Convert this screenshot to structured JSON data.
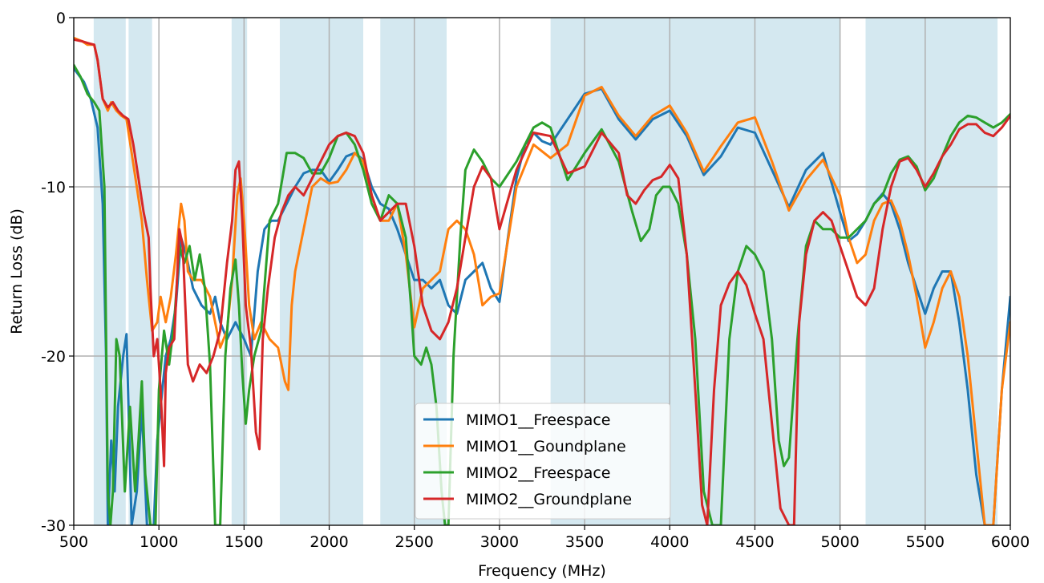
{
  "chart_data": {
    "type": "line",
    "xlabel": "Frequency (MHz)",
    "ylabel": "Return Loss (dB)",
    "xlim": [
      500,
      6000
    ],
    "ylim": [
      -30,
      0
    ],
    "xticks": [
      500,
      1000,
      1500,
      2000,
      2500,
      3000,
      3500,
      4000,
      4500,
      5000,
      5500,
      6000
    ],
    "yticks": [
      -30,
      -20,
      -10,
      0
    ],
    "ytick_labels": [
      "-30",
      "-20",
      "-10",
      "0"
    ],
    "grid": true,
    "legend_position": "lower-center",
    "shaded_bands": [
      [
        617,
        805
      ],
      [
        822,
        960
      ],
      [
        1427,
        1518
      ],
      [
        1710,
        2200
      ],
      [
        2300,
        2690
      ],
      [
        3300,
        5000
      ],
      [
        5150,
        5925
      ]
    ],
    "band_color": "#d4e8f0",
    "series": [
      {
        "name": "MIMO1__Freespace",
        "color": "#1f77b4",
        "x": [
          500,
          560,
          600,
          640,
          670,
          690,
          700,
          720,
          740,
          760,
          790,
          810,
          840,
          870,
          900,
          930,
          950,
          970,
          990,
          1010,
          1040,
          1070,
          1100,
          1130,
          1160,
          1200,
          1250,
          1300,
          1330,
          1360,
          1400,
          1450,
          1500,
          1540,
          1580,
          1620,
          1660,
          1700,
          1750,
          1800,
          1850,
          1900,
          1950,
          2000,
          2050,
          2100,
          2150,
          2200,
          2250,
          2300,
          2350,
          2400,
          2450,
          2500,
          2550,
          2600,
          2650,
          2700,
          2750,
          2800,
          2850,
          2900,
          2950,
          3000,
          3050,
          3100,
          3150,
          3200,
          3250,
          3300,
          3400,
          3500,
          3600,
          3700,
          3800,
          3900,
          4000,
          4100,
          4200,
          4300,
          4400,
          4500,
          4600,
          4700,
          4800,
          4900,
          5000,
          5050,
          5100,
          5150,
          5200,
          5250,
          5300,
          5350,
          5400,
          5450,
          5500,
          5550,
          5600,
          5650,
          5700,
          5750,
          5800,
          5850,
          5900,
          5950,
          6000
        ],
        "values": [
          -3.0,
          -3.8,
          -4.8,
          -6.5,
          -11,
          -20,
          -30,
          -25,
          -28,
          -23,
          -20,
          -18.7,
          -30,
          -28,
          -23,
          -30,
          -30,
          -30,
          -25,
          -23,
          -20,
          -19,
          -17,
          -13,
          -14,
          -16,
          -17,
          -17.5,
          -16.5,
          -18,
          -19,
          -18,
          -19,
          -20,
          -15,
          -12.5,
          -12,
          -12,
          -11,
          -10.0,
          -9.2,
          -9.0,
          -9.0,
          -9.7,
          -9.0,
          -8.2,
          -8.0,
          -8.4,
          -10,
          -11.0,
          -11.3,
          -12.5,
          -14,
          -15.5,
          -15.5,
          -16,
          -15.5,
          -17,
          -17.5,
          -15.5,
          -15.0,
          -14.5,
          -16,
          -16.8,
          -13,
          -9.5,
          -7.5,
          -6.8,
          -7.3,
          -7.5,
          -6.0,
          -4.5,
          -4.2,
          -6.0,
          -7.2,
          -6.0,
          -5.5,
          -7.0,
          -9.3,
          -8.2,
          -6.5,
          -6.8,
          -9.0,
          -11.2,
          -9.0,
          -8.0,
          -11.5,
          -13.2,
          -12.8,
          -12.0,
          -11.0,
          -10.4,
          -11.0,
          -12.5,
          -14.5,
          -16.0,
          -17.5,
          -16.0,
          -15.0,
          -15.0,
          -18.0,
          -22.0,
          -27.0,
          -30.0,
          -30.0,
          -22.0,
          -16.5
        ]
      },
      {
        "name": "MIMO1__Goundplane",
        "color": "#ff7f0e",
        "x": [
          500,
          550,
          580,
          620,
          640,
          670,
          700,
          720,
          750,
          780,
          810,
          840,
          870,
          900,
          930,
          960,
          990,
          1010,
          1040,
          1070,
          1100,
          1130,
          1150,
          1170,
          1200,
          1250,
          1300,
          1330,
          1360,
          1400,
          1430,
          1460,
          1480,
          1500,
          1530,
          1560,
          1600,
          1650,
          1700,
          1740,
          1760,
          1780,
          1800,
          1850,
          1900,
          1950,
          2000,
          2050,
          2100,
          2150,
          2200,
          2250,
          2300,
          2350,
          2400,
          2450,
          2500,
          2550,
          2600,
          2650,
          2700,
          2750,
          2800,
          2850,
          2900,
          2950,
          3000,
          3100,
          3200,
          3300,
          3400,
          3500,
          3600,
          3700,
          3800,
          3900,
          4000,
          4100,
          4200,
          4300,
          4400,
          4500,
          4600,
          4700,
          4800,
          4900,
          5000,
          5050,
          5100,
          5150,
          5200,
          5250,
          5300,
          5350,
          5400,
          5450,
          5500,
          5550,
          5600,
          5650,
          5700,
          5750,
          5800,
          5850,
          5900,
          5950,
          6000
        ],
        "values": [
          -1.2,
          -1.4,
          -1.6,
          -1.6,
          -2.5,
          -4.8,
          -5.5,
          -5.0,
          -5.5,
          -5.8,
          -6.0,
          -8,
          -10,
          -12.0,
          -15.5,
          -18.5,
          -18.0,
          -16.5,
          -18.0,
          -16.5,
          -14.0,
          -11.0,
          -12.0,
          -15,
          -15.5,
          -15.5,
          -16.5,
          -18.0,
          -19.5,
          -18.5,
          -15.5,
          -10.5,
          -9.5,
          -12.0,
          -17.0,
          -19.0,
          -18.0,
          -19.0,
          -19.5,
          -21.5,
          -22.0,
          -17.0,
          -15.0,
          -12.5,
          -10.0,
          -9.5,
          -9.8,
          -9.7,
          -9.0,
          -8.0,
          -8.5,
          -10.5,
          -12.0,
          -12.0,
          -11.0,
          -14.0,
          -18.3,
          -16.0,
          -15.5,
          -15.0,
          -12.5,
          -12.0,
          -12.5,
          -14.0,
          -17.0,
          -16.5,
          -16.3,
          -10.0,
          -7.5,
          -8.3,
          -7.5,
          -4.6,
          -4.1,
          -5.8,
          -7.0,
          -5.8,
          -5.2,
          -6.8,
          -9.1,
          -7.6,
          -6.2,
          -5.9,
          -8.5,
          -11.4,
          -9.6,
          -8.4,
          -10.5,
          -13.0,
          -14.5,
          -14.0,
          -12.0,
          -11.0,
          -10.8,
          -12.0,
          -14.0,
          -16.5,
          -19.5,
          -18.0,
          -16.0,
          -15.0,
          -16.5,
          -20.0,
          -25.0,
          -30.0,
          -30.0,
          -22.0,
          -18.0
        ]
      },
      {
        "name": "MIMO2__Freespace",
        "color": "#2ca02c",
        "x": [
          500,
          540,
          580,
          620,
          650,
          680,
          700,
          715,
          730,
          750,
          770,
          800,
          830,
          860,
          880,
          900,
          920,
          950,
          980,
          1000,
          1030,
          1060,
          1090,
          1120,
          1150,
          1180,
          1210,
          1240,
          1270,
          1300,
          1330,
          1360,
          1390,
          1420,
          1450,
          1470,
          1490,
          1510,
          1530,
          1560,
          1600,
          1650,
          1700,
          1750,
          1800,
          1850,
          1900,
          1950,
          2000,
          2050,
          2100,
          2150,
          2200,
          2250,
          2300,
          2350,
          2400,
          2450,
          2480,
          2500,
          2540,
          2570,
          2600,
          2630,
          2660,
          2680,
          2700,
          2730,
          2770,
          2800,
          2850,
          2900,
          2950,
          3000,
          3100,
          3200,
          3250,
          3300,
          3400,
          3500,
          3600,
          3700,
          3780,
          3830,
          3880,
          3920,
          3960,
          4000,
          4050,
          4100,
          4150,
          4200,
          4250,
          4300,
          4350,
          4400,
          4450,
          4500,
          4550,
          4600,
          4640,
          4670,
          4700,
          4750,
          4800,
          4850,
          4900,
          4950,
          5000,
          5050,
          5100,
          5150,
          5200,
          5250,
          5300,
          5350,
          5400,
          5450,
          5500,
          5550,
          5600,
          5650,
          5700,
          5750,
          5800,
          5850,
          5900,
          5950,
          6000
        ],
        "values": [
          -2.8,
          -3.5,
          -4.5,
          -5.0,
          -5.5,
          -10,
          -28,
          -30,
          -28,
          -19,
          -20,
          -28,
          -23,
          -28,
          -25,
          -21.5,
          -27,
          -30,
          -30,
          -22,
          -18.5,
          -20.5,
          -18.0,
          -13.5,
          -14.5,
          -13.5,
          -15.5,
          -14.0,
          -16.0,
          -20.5,
          -30,
          -30,
          -20.0,
          -16.0,
          -14.3,
          -17.0,
          -21.0,
          -24.0,
          -22.0,
          -20.0,
          -18.5,
          -12.0,
          -11.0,
          -8.0,
          -8.0,
          -8.3,
          -9.2,
          -9.2,
          -8.3,
          -7.0,
          -6.8,
          -7.5,
          -9.0,
          -11.0,
          -12.0,
          -10.5,
          -11.0,
          -13.0,
          -17.0,
          -20.0,
          -20.5,
          -19.5,
          -20.5,
          -23.0,
          -28.0,
          -30.0,
          -30.0,
          -20.0,
          -13.0,
          -9.0,
          -7.8,
          -8.5,
          -9.5,
          -10.0,
          -8.5,
          -6.5,
          -6.2,
          -6.5,
          -9.6,
          -8.0,
          -6.6,
          -8.5,
          -11.5,
          -13.2,
          -12.5,
          -10.5,
          -10.0,
          -10.0,
          -11.0,
          -14.0,
          -19.0,
          -28.0,
          -30.0,
          -30.0,
          -19.0,
          -15.0,
          -13.5,
          -14.0,
          -15.0,
          -19.0,
          -25.0,
          -26.5,
          -26.0,
          -19.0,
          -13.5,
          -12.0,
          -12.5,
          -12.5,
          -13.0,
          -13.0,
          -12.5,
          -12.0,
          -11.0,
          -10.5,
          -9.2,
          -8.4,
          -8.2,
          -8.8,
          -10.2,
          -9.5,
          -8.2,
          -7.0,
          -6.2,
          -5.8,
          -5.9,
          -6.2,
          -6.5,
          -6.2,
          -5.7
        ]
      },
      {
        "name": "MIMO2__Groundplane",
        "color": "#d62728",
        "x": [
          500,
          550,
          580,
          620,
          640,
          670,
          700,
          730,
          760,
          790,
          820,
          850,
          880,
          910,
          940,
          950,
          970,
          990,
          1010,
          1030,
          1040,
          1060,
          1090,
          1120,
          1140,
          1170,
          1200,
          1240,
          1280,
          1320,
          1360,
          1400,
          1430,
          1450,
          1470,
          1490,
          1510,
          1540,
          1570,
          1590,
          1610,
          1640,
          1680,
          1720,
          1760,
          1800,
          1850,
          1900,
          1950,
          2000,
          2050,
          2100,
          2150,
          2200,
          2250,
          2300,
          2350,
          2400,
          2450,
          2500,
          2550,
          2600,
          2650,
          2700,
          2750,
          2800,
          2850,
          2900,
          2950,
          3000,
          3100,
          3200,
          3300,
          3400,
          3500,
          3600,
          3700,
          3750,
          3800,
          3850,
          3900,
          3950,
          4000,
          4050,
          4100,
          4150,
          4190,
          4220,
          4260,
          4300,
          4350,
          4400,
          4450,
          4500,
          4550,
          4600,
          4650,
          4700,
          4730,
          4760,
          4800,
          4850,
          4900,
          4950,
          5000,
          5050,
          5100,
          5150,
          5200,
          5250,
          5300,
          5350,
          5400,
          5450,
          5500,
          5550,
          5600,
          5650,
          5700,
          5750,
          5800,
          5850,
          5900,
          5950,
          6000
        ],
        "values": [
          -1.3,
          -1.4,
          -1.5,
          -1.6,
          -2.5,
          -4.8,
          -5.3,
          -5.0,
          -5.5,
          -5.8,
          -6.0,
          -7.5,
          -9.5,
          -11.5,
          -13.0,
          -16.0,
          -20.0,
          -19.0,
          -22.0,
          -26.5,
          -21.0,
          -19.5,
          -19.0,
          -12.5,
          -13.5,
          -20.5,
          -21.5,
          -20.5,
          -21.0,
          -20.0,
          -18.5,
          -14.5,
          -12.0,
          -9.0,
          -8.5,
          -12.0,
          -17.0,
          -19.5,
          -24.5,
          -25.5,
          -19.0,
          -16.0,
          -13.0,
          -11.5,
          -10.5,
          -10.0,
          -10.5,
          -9.5,
          -8.5,
          -7.5,
          -7.0,
          -6.8,
          -7.0,
          -8.0,
          -10.5,
          -12.0,
          -11.5,
          -11.0,
          -11.0,
          -13.5,
          -17.0,
          -18.5,
          -19.0,
          -18.0,
          -16.0,
          -13.0,
          -10.0,
          -8.8,
          -9.5,
          -12.5,
          -9.0,
          -6.8,
          -7.0,
          -9.2,
          -8.8,
          -6.8,
          -8.0,
          -10.5,
          -11.0,
          -10.2,
          -9.6,
          -9.4,
          -8.7,
          -9.5,
          -14.0,
          -22.0,
          -28.8,
          -30.0,
          -22.0,
          -17.0,
          -15.7,
          -15.0,
          -15.8,
          -17.5,
          -19.0,
          -24.0,
          -29.0,
          -30.0,
          -30.0,
          -18.0,
          -14.0,
          -12.0,
          -11.5,
          -12.0,
          -13.5,
          -15.0,
          -16.5,
          -17.0,
          -16.0,
          -12.5,
          -10.0,
          -8.5,
          -8.3,
          -9.0,
          -10.0,
          -9.2,
          -8.2,
          -7.5,
          -6.6,
          -6.3,
          -6.3,
          -6.8,
          -7.0,
          -6.5,
          -5.8
        ]
      }
    ]
  }
}
